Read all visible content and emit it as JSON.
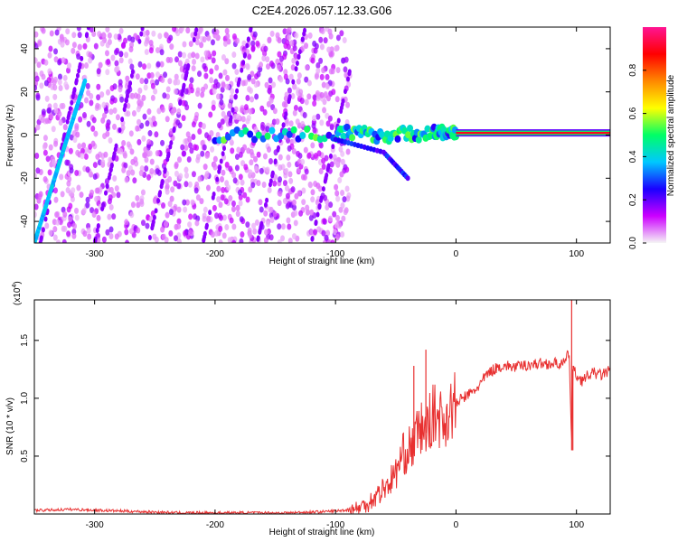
{
  "title": "C2E4.2026.057.12.33.G06",
  "colors": {
    "snr_line": "#e83030",
    "colorbar_stops": [
      "#f5f5f5",
      "#cc00ff",
      "#1a00ff",
      "#00c8ff",
      "#00ff66",
      "#ffff00",
      "#ff8800",
      "#ff0000",
      "#ff1493"
    ]
  },
  "chart_data": [
    {
      "type": "heatmap",
      "name": "spectrogram",
      "xlabel": "Height of straight line (km)",
      "ylabel": "Frequency (Hz)",
      "xlim": [
        -350,
        128
      ],
      "ylim": [
        -50,
        50
      ],
      "xticks": [
        -300,
        -200,
        -100,
        0,
        100
      ],
      "xtick_labels": [
        "-300",
        "-200",
        "-100",
        "0",
        "100"
      ],
      "yticks": [
        -40,
        -20,
        0,
        20,
        40
      ],
      "ytick_labels": [
        "-40",
        "-20",
        "0",
        "20",
        "40"
      ],
      "colorbar": {
        "label": "Normalized spectral amplitude",
        "range": [
          0,
          1
        ],
        "ticks": [
          0.0,
          0.2,
          0.4,
          0.6,
          0.8
        ],
        "tick_labels": [
          "0.0",
          "0.2",
          "0.4",
          "0.6",
          "0.8"
        ]
      },
      "features": [
        {
          "name": "steep diagonal trace",
          "points": [
            [
              -350,
              -50
            ],
            [
              -308,
              25
            ]
          ],
          "amplitude": 0.35
        },
        {
          "name": "dense scatter region",
          "x_range": [
            -350,
            -88
          ],
          "y_range": [
            -50,
            50
          ],
          "amplitude": 0.05
        },
        {
          "name": "converging trace",
          "points": [
            [
              -200,
              0
            ],
            [
              -100,
              1
            ],
            [
              -60,
              0
            ],
            [
              -20,
              1
            ],
            [
              0,
              1
            ]
          ],
          "amplitude": 0.45
        },
        {
          "name": "descending branch",
          "points": [
            [
              -100,
              -2
            ],
            [
              -60,
              -8
            ],
            [
              -40,
              -20
            ]
          ],
          "amplitude": 0.2
        },
        {
          "name": "steady carrier",
          "points": [
            [
              0,
              1
            ],
            [
              128,
              1
            ]
          ],
          "amplitude": 0.9
        }
      ]
    },
    {
      "type": "line",
      "name": "snr",
      "xlabel": "Height of straight line (km)",
      "ylabel": "SNR (10 * v/v)",
      "scale_label": "(x10",
      "scale_exponent": "4",
      "scale_suffix": ")",
      "xlim": [
        -350,
        128
      ],
      "ylim": [
        0,
        1.85
      ],
      "xticks": [
        -300,
        -200,
        -100,
        0,
        100
      ],
      "xtick_labels": [
        "-300",
        "-200",
        "-100",
        "0",
        "100"
      ],
      "yticks": [
        0.5,
        1.0,
        1.5
      ],
      "ytick_labels": [
        "0.5",
        "1.0",
        "1.5"
      ],
      "x": [
        -350,
        -320,
        -290,
        -260,
        -230,
        -200,
        -170,
        -140,
        -110,
        -95,
        -80,
        -70,
        -60,
        -55,
        -50,
        -45,
        -40,
        -35,
        -30,
        -25,
        -20,
        -15,
        -10,
        -5,
        0,
        5,
        10,
        15,
        20,
        25,
        30,
        35,
        40,
        50,
        60,
        70,
        80,
        90,
        94,
        96,
        97,
        100,
        105,
        110,
        115,
        120,
        128
      ],
      "y": [
        0.03,
        0.04,
        0.03,
        0.02,
        0.01,
        0.01,
        0.01,
        0.01,
        0.02,
        0.03,
        0.05,
        0.12,
        0.22,
        0.28,
        0.35,
        0.5,
        0.55,
        0.6,
        0.75,
        0.7,
        0.85,
        0.85,
        0.8,
        0.9,
        0.95,
        1.0,
        1.03,
        1.06,
        1.12,
        1.2,
        1.24,
        1.27,
        1.28,
        1.27,
        1.29,
        1.3,
        1.3,
        1.3,
        1.4,
        0.55,
        1.25,
        1.2,
        1.15,
        1.2,
        1.22,
        1.2,
        1.24
      ],
      "spikes": [
        [
          -35,
          1.28
        ],
        [
          -25,
          1.42
        ],
        [
          96,
          1.85
        ],
        [
          97,
          0.55
        ]
      ]
    }
  ]
}
